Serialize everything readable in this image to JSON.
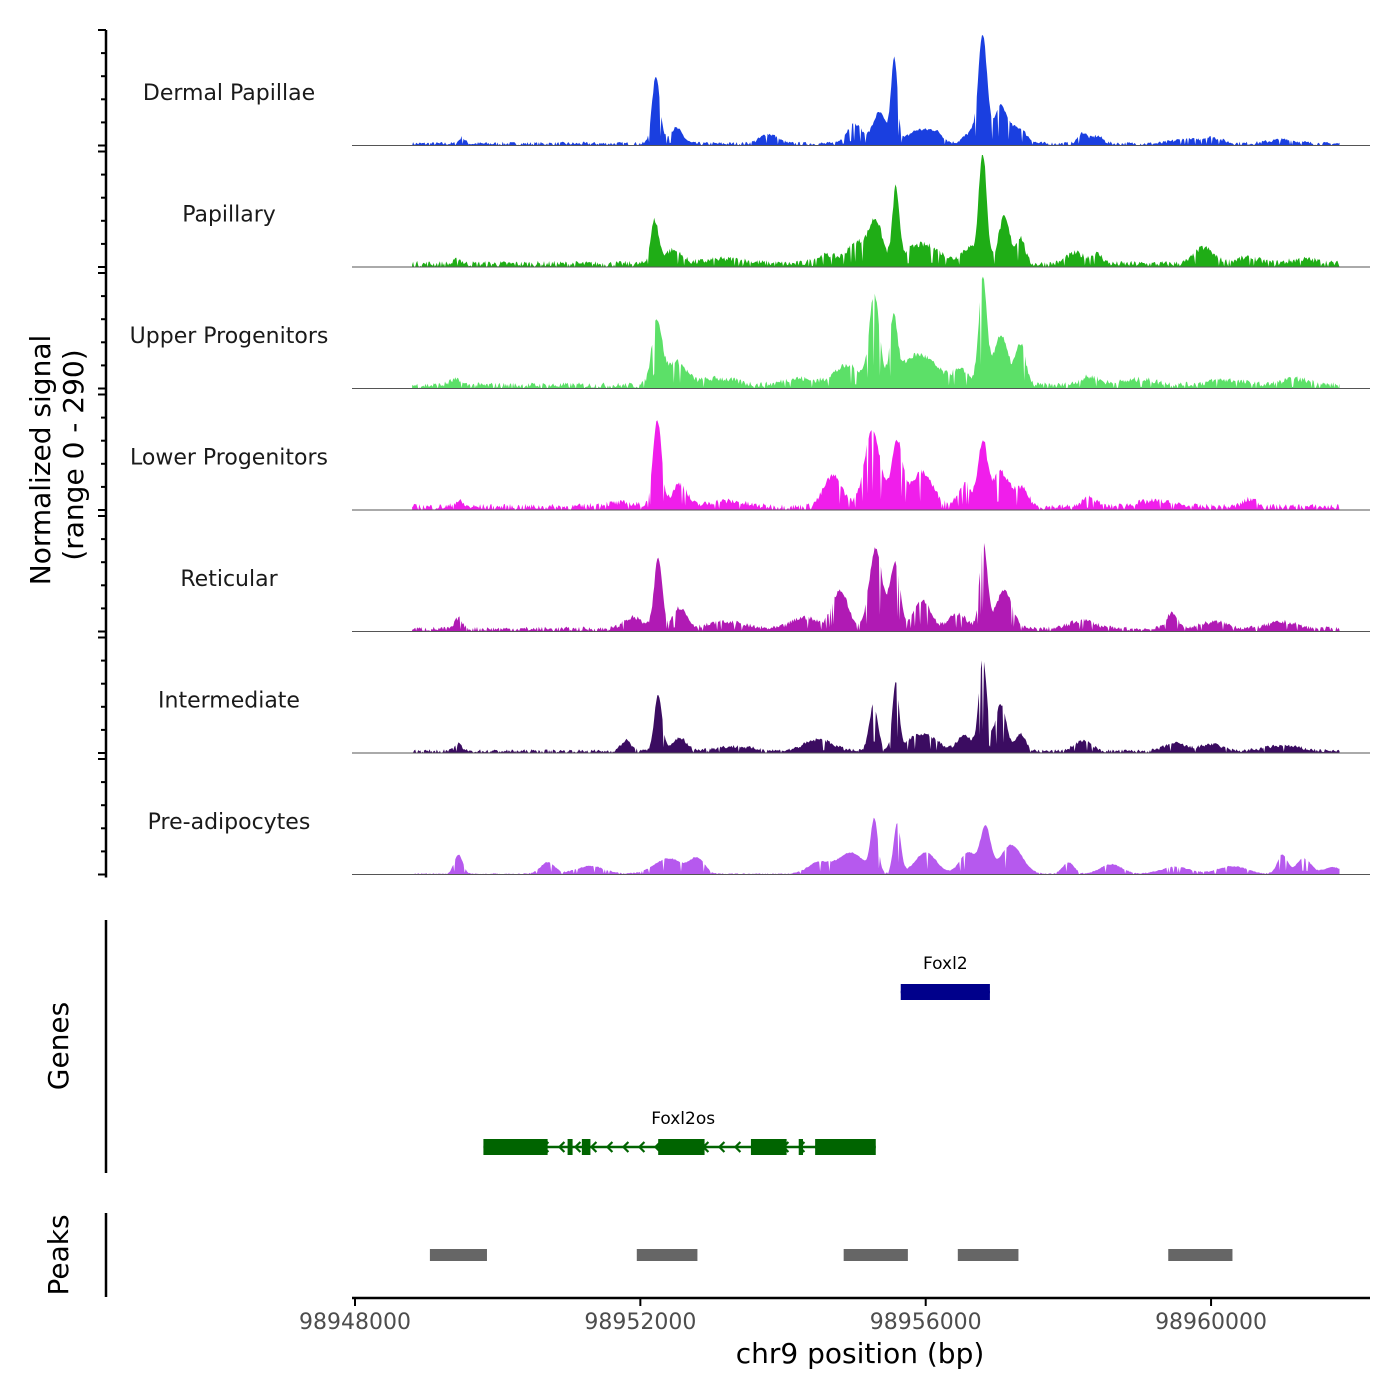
{
  "chart_data": {
    "type": "area",
    "title": "",
    "xlabel": "chr9 position (bp)",
    "ylabel_line1": "Normalized signal",
    "ylabel_line2": "(range 0 - 290)",
    "xlim": [
      98948000,
      98962200
    ],
    "ylim": [
      0,
      290
    ],
    "x_ticks": [
      98948000,
      98952000,
      98956000,
      98960000
    ],
    "x_tick_labels": [
      "98948000",
      "98952000",
      "98956000",
      "98960000"
    ],
    "panel_labels": {
      "genes": "Genes",
      "peaks": "Peaks"
    },
    "signal_range": [
      98948800,
      98961800
    ],
    "tracks": [
      {
        "name": "Dermal Papillae",
        "color": "#1a3fe0",
        "peaks": [
          [
            98949500,
            16,
            40
          ],
          [
            98952220,
            175,
            55
          ],
          [
            98952500,
            40,
            90
          ],
          [
            98953800,
            25,
            120
          ],
          [
            98955000,
            50,
            110
          ],
          [
            98955350,
            80,
            90
          ],
          [
            98955560,
            215,
            45
          ],
          [
            98955900,
            35,
            150
          ],
          [
            98956150,
            25,
            100
          ],
          [
            98956650,
            30,
            110
          ],
          [
            98956800,
            270,
            60
          ],
          [
            98957050,
            95,
            90
          ],
          [
            98957300,
            40,
            110
          ],
          [
            98958200,
            28,
            60
          ],
          [
            98958400,
            20,
            80
          ],
          [
            98959600,
            10,
            160
          ],
          [
            98960000,
            16,
            150
          ],
          [
            98961000,
            10,
            200
          ]
        ],
        "base": 6
      },
      {
        "name": "Papillary",
        "color": "#1fad16",
        "peaks": [
          [
            98949450,
            12,
            50
          ],
          [
            98952200,
            110,
            55
          ],
          [
            98952450,
            35,
            120
          ],
          [
            98953200,
            12,
            300
          ],
          [
            98954600,
            22,
            150
          ],
          [
            98955050,
            55,
            140
          ],
          [
            98955300,
            105,
            90
          ],
          [
            98955580,
            185,
            45
          ],
          [
            98955950,
            50,
            250
          ],
          [
            98956600,
            40,
            100
          ],
          [
            98956800,
            285,
            55
          ],
          [
            98957100,
            120,
            80
          ],
          [
            98957330,
            68,
            60
          ],
          [
            98958100,
            28,
            120
          ],
          [
            98958400,
            25,
            80
          ],
          [
            98959900,
            42,
            130
          ],
          [
            98960500,
            15,
            180
          ],
          [
            98961300,
            12,
            200
          ]
        ],
        "base": 10
      },
      {
        "name": "Upper Progenitors",
        "color": "#5ce068",
        "peaks": [
          [
            98949400,
            14,
            80
          ],
          [
            98952230,
            165,
            70
          ],
          [
            98952500,
            60,
            140
          ],
          [
            98953100,
            18,
            250
          ],
          [
            98954200,
            18,
            200
          ],
          [
            98954900,
            50,
            200
          ],
          [
            98955280,
            225,
            70
          ],
          [
            98955550,
            160,
            50
          ],
          [
            98955900,
            80,
            250
          ],
          [
            98956500,
            35,
            120
          ],
          [
            98956800,
            270,
            55
          ],
          [
            98957050,
            130,
            100
          ],
          [
            98957330,
            105,
            70
          ],
          [
            98958300,
            22,
            140
          ],
          [
            98959000,
            15,
            250
          ],
          [
            98960200,
            14,
            250
          ],
          [
            98961200,
            16,
            200
          ]
        ],
        "base": 10
      },
      {
        "name": "Lower Progenitors",
        "color": "#f01eeb",
        "peaks": [
          [
            98949450,
            15,
            60
          ],
          [
            98951700,
            10,
            250
          ],
          [
            98952240,
            225,
            60
          ],
          [
            98952550,
            60,
            100
          ],
          [
            98953200,
            15,
            250
          ],
          [
            98954700,
            80,
            130
          ],
          [
            98955250,
            200,
            110
          ],
          [
            98955600,
            165,
            80
          ],
          [
            98955950,
            90,
            150
          ],
          [
            98956550,
            60,
            100
          ],
          [
            98956800,
            165,
            60
          ],
          [
            98957050,
            90,
            120
          ],
          [
            98957350,
            45,
            90
          ],
          [
            98958300,
            25,
            90
          ],
          [
            98959200,
            15,
            250
          ],
          [
            98960550,
            20,
            100
          ]
        ],
        "base": 10
      },
      {
        "name": "Reticular",
        "color": "#b01ab4",
        "peaks": [
          [
            98949450,
            28,
            50
          ],
          [
            98951900,
            30,
            130
          ],
          [
            98952250,
            185,
            55
          ],
          [
            98952550,
            55,
            100
          ],
          [
            98953200,
            18,
            250
          ],
          [
            98954300,
            30,
            180
          ],
          [
            98954800,
            100,
            110
          ],
          [
            98955300,
            210,
            90
          ],
          [
            98955570,
            170,
            70
          ],
          [
            98955950,
            75,
            120
          ],
          [
            98956450,
            40,
            120
          ],
          [
            98956810,
            215,
            55
          ],
          [
            98957100,
            100,
            110
          ],
          [
            98958200,
            22,
            180
          ],
          [
            98959450,
            40,
            80
          ],
          [
            98960050,
            18,
            200
          ],
          [
            98961000,
            18,
            200
          ]
        ],
        "base": 8
      },
      {
        "name": "Intermediate",
        "color": "#3b0c61",
        "peaks": [
          [
            98949450,
            18,
            50
          ],
          [
            98951800,
            28,
            70
          ],
          [
            98952250,
            145,
            55
          ],
          [
            98952550,
            35,
            90
          ],
          [
            98953300,
            12,
            280
          ],
          [
            98954500,
            30,
            200
          ],
          [
            98955270,
            120,
            60
          ],
          [
            98955580,
            175,
            45
          ],
          [
            98955950,
            45,
            200
          ],
          [
            98956550,
            40,
            100
          ],
          [
            98956800,
            240,
            55
          ],
          [
            98957050,
            120,
            80
          ],
          [
            98957330,
            45,
            70
          ],
          [
            98958200,
            26,
            120
          ],
          [
            98959500,
            20,
            150
          ],
          [
            98960000,
            18,
            150
          ],
          [
            98961000,
            14,
            250
          ]
        ],
        "base": 6
      },
      {
        "name": "Pre-adipocytes",
        "color": "#b659ee",
        "peaks": [
          [
            98949450,
            50,
            60
          ],
          [
            98950700,
            30,
            100
          ],
          [
            98951300,
            20,
            200
          ],
          [
            98952400,
            40,
            200
          ],
          [
            98952800,
            38,
            100
          ],
          [
            98954500,
            30,
            150
          ],
          [
            98954950,
            55,
            180
          ],
          [
            98955280,
            135,
            50
          ],
          [
            98955600,
            130,
            50
          ],
          [
            98956000,
            55,
            150
          ],
          [
            98956600,
            55,
            120
          ],
          [
            98956840,
            115,
            70
          ],
          [
            98957200,
            75,
            150
          ],
          [
            98958000,
            30,
            80
          ],
          [
            98958600,
            25,
            150
          ],
          [
            98959500,
            18,
            200
          ],
          [
            98960300,
            20,
            200
          ],
          [
            98961000,
            50,
            70
          ],
          [
            98961300,
            40,
            100
          ],
          [
            98961700,
            18,
            120
          ]
        ],
        "base": 2
      }
    ],
    "genes": [
      {
        "name": "Foxl2",
        "color": "#00008b",
        "strand": "-",
        "start": 98955650,
        "end": 98956900,
        "exons": [
          [
            98955650,
            98956900
          ]
        ],
        "row": 1
      },
      {
        "name": "Foxl2os",
        "color": "#006400",
        "strand": "-",
        "start": 98949800,
        "end": 98955300,
        "exons": [
          [
            98949800,
            98950700
          ],
          [
            98950980,
            98951050
          ],
          [
            98951180,
            98951300
          ],
          [
            98952250,
            98952900
          ],
          [
            98953550,
            98954050
          ],
          [
            98954220,
            98954280
          ],
          [
            98954450,
            98955300
          ]
        ],
        "row": 2
      }
    ],
    "peaks_track": {
      "color": "#666666",
      "regions": [
        [
          98949050,
          98949850
        ],
        [
          98951950,
          98952800
        ],
        [
          98954850,
          98955750
        ],
        [
          98956450,
          98957300
        ],
        [
          98959400,
          98960300
        ]
      ]
    }
  }
}
